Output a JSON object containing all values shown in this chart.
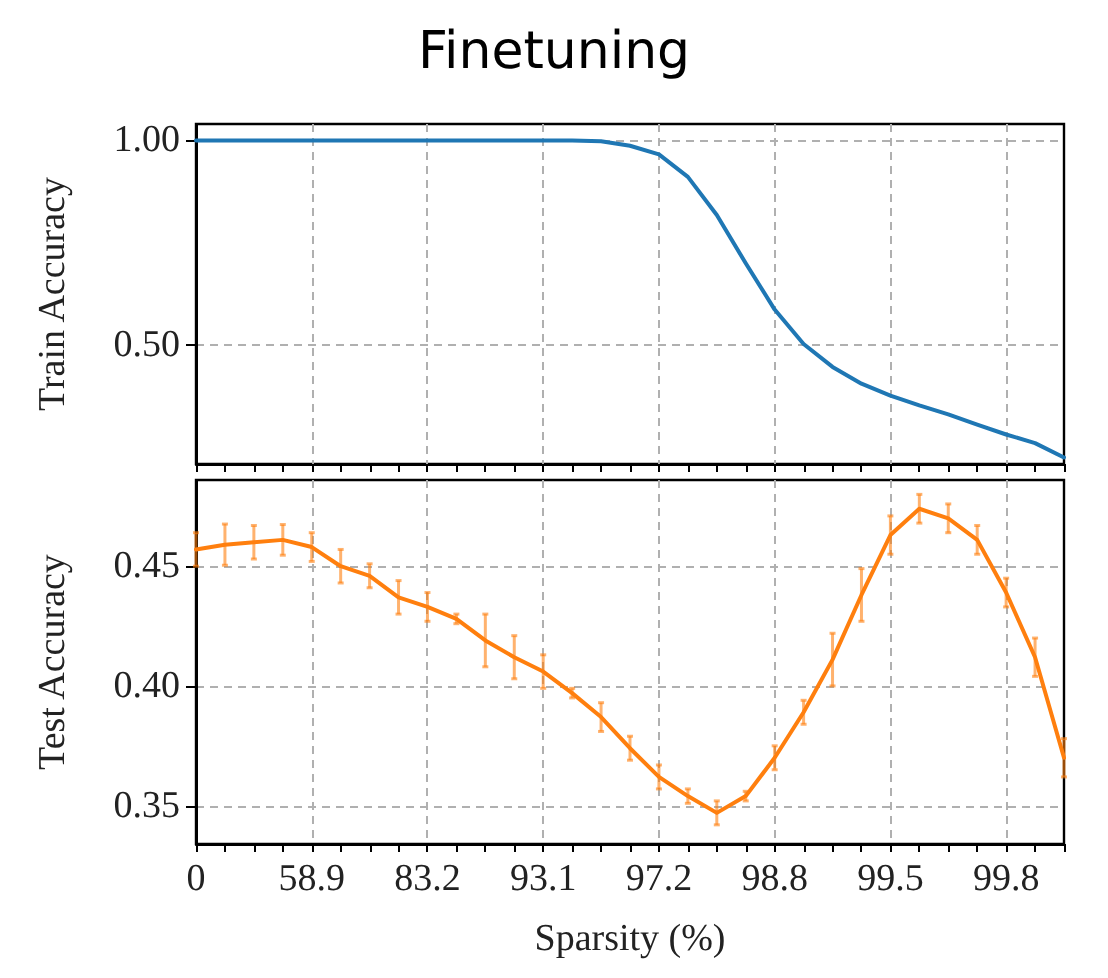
{
  "chart_data": [
    {
      "type": "line",
      "title": "Finetuning",
      "ylabel": "Train Accuracy",
      "tick_labels": "y",
      "grid": true,
      "marker": "none",
      "line_style": "solid",
      "categories": [
        "0",
        null,
        null,
        null,
        "58.9",
        null,
        null,
        null,
        "83.2",
        null,
        null,
        null,
        "93.1",
        null,
        null,
        null,
        "97.2",
        null,
        null,
        null,
        "98.8",
        null,
        null,
        null,
        "99.5",
        null,
        null,
        null,
        "99.8",
        null,
        null
      ],
      "ylim": [
        0.21,
        1.04
      ],
      "yticks": [
        {
          "value": 0.5,
          "label": "0.50"
        },
        {
          "value": 1,
          "label": "1.00"
        }
      ],
      "series": [
        {
          "color": "#1f77b4",
          "values": [
            1.0,
            1.0,
            1.0,
            1.0,
            1.0,
            1.0,
            1.0,
            1.0,
            1.0,
            1.0,
            1.0,
            1.0,
            1.0,
            1.0,
            0.998,
            0.987,
            0.966,
            0.911,
            0.818,
            0.7,
            0.587,
            0.503,
            0.447,
            0.406,
            0.377,
            0.353,
            0.331,
            0.306,
            0.282,
            0.261,
            0.226
          ]
        }
      ]
    },
    {
      "type": "line",
      "xlabel": "Sparsity (%)",
      "ylabel": "Test Accuracy",
      "grid": true,
      "marker": "none",
      "line_style": "solid",
      "categories": [
        "0",
        null,
        null,
        null,
        "58.9",
        null,
        null,
        null,
        "83.2",
        null,
        null,
        null,
        "93.1",
        null,
        null,
        null,
        "97.2",
        null,
        null,
        null,
        "98.8",
        null,
        null,
        null,
        "99.5",
        null,
        null,
        null,
        "99.8",
        null,
        null
      ],
      "ylim": [
        0.334,
        0.486
      ],
      "yticks": [
        {
          "value": 0.35,
          "label": "0.35"
        },
        {
          "value": 0.4,
          "label": "0.40"
        },
        {
          "value": 0.45,
          "label": "0.45"
        }
      ],
      "series": [
        {
          "color": "#ff7f0e",
          "values": [
            0.457,
            0.459,
            0.46,
            0.461,
            0.458,
            0.45,
            0.446,
            0.437,
            0.433,
            0.428,
            0.419,
            0.412,
            0.406,
            0.397,
            0.387,
            0.374,
            0.362,
            0.354,
            0.347,
            0.354,
            0.37,
            0.389,
            0.411,
            0.438,
            0.463,
            0.474,
            0.47,
            0.461,
            0.439,
            0.412,
            0.37
          ],
          "errors": [
            0.007,
            0.0086,
            0.007,
            0.0064,
            0.006,
            0.007,
            0.005,
            0.007,
            0.006,
            0.002,
            0.011,
            0.009,
            0.007,
            0.002,
            0.006,
            0.005,
            0.005,
            0.003,
            0.005,
            0.002,
            0.005,
            0.005,
            0.011,
            0.011,
            0.008,
            0.006,
            0.006,
            0.006,
            0.006,
            0.008,
            0.008
          ]
        }
      ]
    }
  ]
}
